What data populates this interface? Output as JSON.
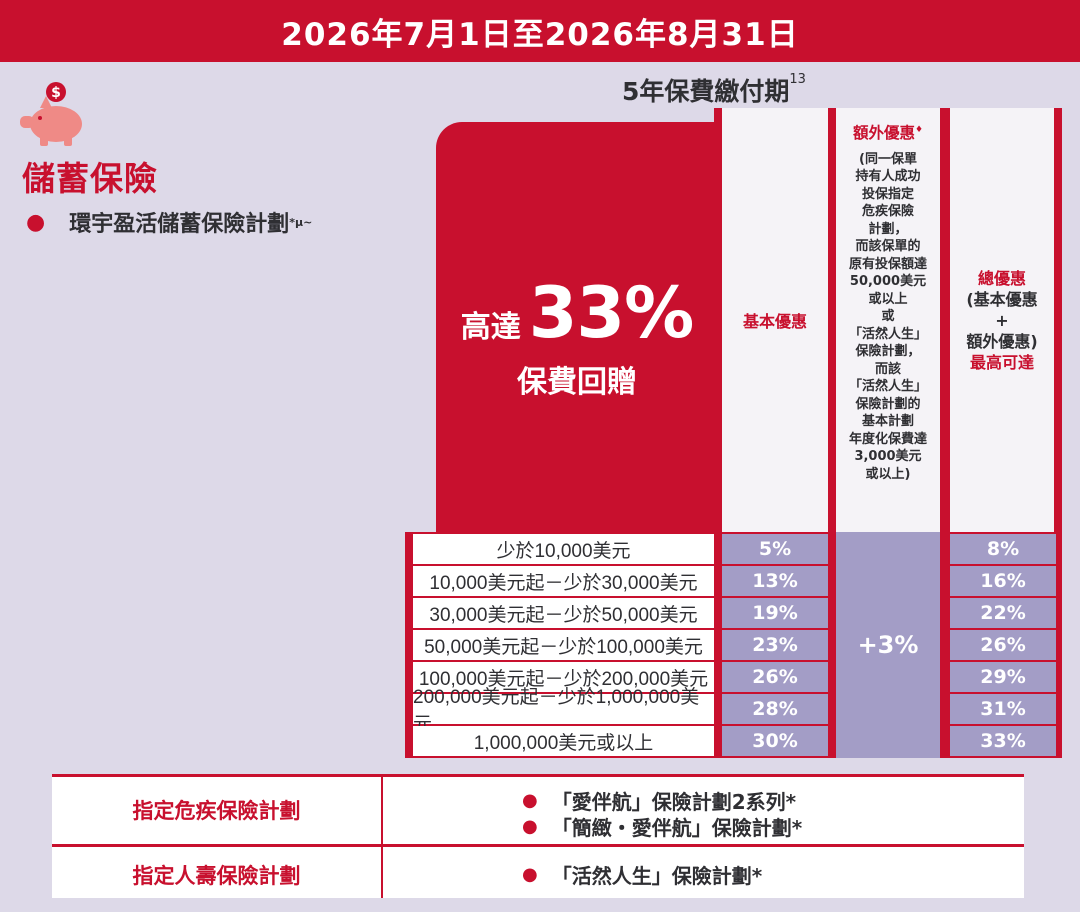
{
  "banner": {
    "date_range": "2026年7月1日至2026年8月31日"
  },
  "left": {
    "icon": "piggy-bank-dollar-icon",
    "section_title": "儲蓄保險",
    "plan_name": "環宇盈活儲蓄保險計劃",
    "plan_marks": "*µ~"
  },
  "period": {
    "label": "5年保費繳付期",
    "note": "13"
  },
  "hero": {
    "prefix": "高達",
    "percent": "33%",
    "suffix": "保費回贈"
  },
  "columns": {
    "basic": "基本優惠",
    "extra_title": "額外優惠",
    "extra_mark": "♦",
    "extra_lines": [
      "(同一保單",
      "持有人成功",
      "投保指定",
      "危疾保險",
      "計劃，",
      "而該保單的",
      "原有投保額達",
      "50,000美元",
      "或以上",
      "或",
      "「活然人生」",
      "保險計劃，",
      "而該",
      "「活然人生」",
      "保險計劃的",
      "基本計劃",
      "年度化保費達",
      "3,000美元",
      "或以上)"
    ],
    "total_lines": [
      "總優惠",
      "(基本優惠",
      "+",
      "額外優惠)",
      "最高可達"
    ]
  },
  "tiers": [
    {
      "range": "少於10,000美元",
      "basic": "5%",
      "total": "8%"
    },
    {
      "range": "10,000美元起－少於30,000美元",
      "basic": "13%",
      "total": "16%"
    },
    {
      "range": "30,000美元起－少於50,000美元",
      "basic": "19%",
      "total": "22%"
    },
    {
      "range": "50,000美元起－少於100,000美元",
      "basic": "23%",
      "total": "26%"
    },
    {
      "range": "100,000美元起－少於200,000美元",
      "basic": "26%",
      "total": "29%"
    },
    {
      "range": "200,000美元起－少於1,000,000美元",
      "basic": "28%",
      "total": "31%"
    },
    {
      "range": "1,000,000美元或以上",
      "basic": "30%",
      "total": "33%"
    }
  ],
  "extra_value": "+3%",
  "bottom": {
    "row1_label": "指定危疾保險計劃",
    "row1_items": [
      "「愛伴航」保險計劃2系列*",
      "「簡緻・愛伴航」保險計劃*"
    ],
    "row2_label": "指定人壽保險計劃",
    "row2_items": [
      "「活然人生」保險計劃*"
    ]
  }
}
